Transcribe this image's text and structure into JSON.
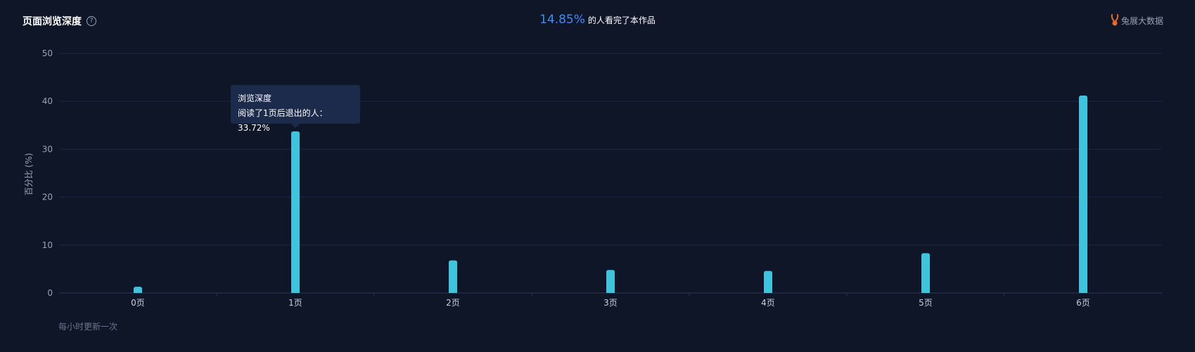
{
  "header": {
    "title": "页面浏览深度",
    "help_icon": "question-circle-icon",
    "summary_pct": "14.85%",
    "summary_text": "的人看完了本作品",
    "brand_label": "兔展大数据",
    "brand_icon": "rabbit-logo-icon"
  },
  "footer": {
    "note": "每小时更新一次"
  },
  "tooltip": {
    "title": "浏览深度",
    "line": "阅读了1页后退出的人：33.72%"
  },
  "colors": {
    "background": "#0f1628",
    "bar": "#3ec4dc",
    "grid": "#1e2740",
    "accent": "#3d8df5",
    "brand": "#e8682a"
  },
  "chart_data": {
    "type": "bar",
    "title": "页面浏览深度",
    "ylabel": "百分比 (%)",
    "xlabel": "",
    "categories": [
      "0页",
      "1页",
      "2页",
      "3页",
      "4页",
      "5页",
      "6页"
    ],
    "values": [
      1.3,
      33.72,
      6.8,
      4.8,
      4.6,
      8.3,
      41.2
    ],
    "ylim": [
      0,
      50
    ],
    "yticks": [
      0,
      10,
      20,
      30,
      40,
      50
    ],
    "grid": true,
    "legend": "none"
  }
}
